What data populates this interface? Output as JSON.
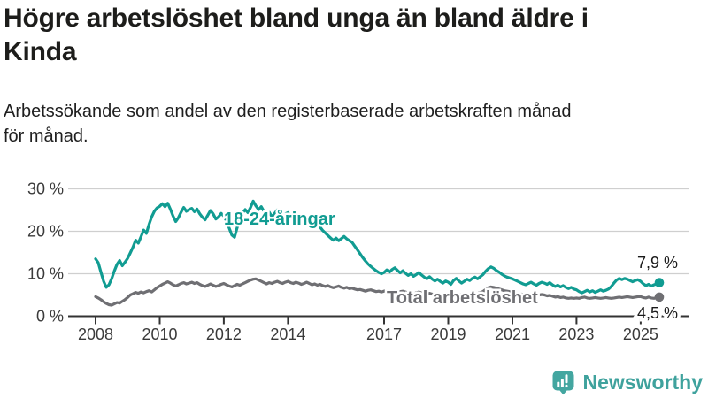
{
  "chart_data": {
    "type": "line",
    "title": "Högre arbetslöshet bland unga än bland äldre i Kinda",
    "title_lines": [
      "Högre arbetslöshet bland unga än bland äldre i",
      "Kinda"
    ],
    "subtitle": "Arbetssökande som andel av den registerbaserade arbetskraften månad för månad.",
    "subtitle_lines": [
      "Arbetssökande som andel av den registerbaserade arbetskraften månad",
      "för månad."
    ],
    "x_range": {
      "start": "2008-01",
      "end": "2025-08",
      "frequency": "monthly"
    },
    "x_tick_labels": [
      "2008",
      "2010",
      "2012",
      "2014",
      "2017",
      "2019",
      "2021",
      "2023",
      "2025"
    ],
    "y_ticks": [
      0,
      10,
      20,
      30
    ],
    "y_tick_labels": [
      "0 %",
      "10 %",
      "20 %",
      "30 %"
    ],
    "ylim": [
      0,
      30
    ],
    "grid": "horizontal",
    "legend": "inline-labels",
    "series": [
      {
        "id": "youth",
        "name": "18-24-åringar",
        "color": "#119C92",
        "end_value": 7.9,
        "end_label": "7,9 %",
        "values": [
          13.5,
          12.6,
          10.4,
          8.2,
          6.8,
          7.4,
          8.8,
          10.6,
          12.2,
          13.1,
          11.9,
          12.7,
          13.6,
          14.9,
          16.3,
          17.9,
          17.2,
          18.7,
          20.3,
          19.5,
          21.6,
          23.4,
          24.7,
          25.5,
          25.9,
          26.5,
          25.8,
          26.6,
          25.2,
          23.6,
          22.3,
          23.2,
          24.5,
          25.6,
          24.7,
          25.1,
          25.4,
          24.6,
          25.2,
          24.1,
          23.3,
          22.7,
          23.8,
          24.9,
          24.1,
          22.9,
          23.4,
          24.2,
          23.6,
          22.4,
          20.8,
          19.1,
          18.6,
          20.9,
          22.8,
          24.3,
          25.1,
          24.4,
          25.6,
          27.1,
          26.0,
          25.1,
          25.8,
          24.7,
          23.8,
          24.5,
          23.4,
          24.2,
          25.0,
          24.3,
          23.5,
          24.1,
          24.4,
          23.6,
          24.2,
          23.4,
          22.8,
          23.3,
          22.5,
          23.0,
          23.6,
          22.8,
          22.1,
          21.6,
          21.0,
          20.2,
          19.6,
          19.0,
          18.4,
          17.9,
          18.4,
          17.8,
          18.3,
          18.8,
          18.2,
          17.8,
          17.4,
          16.5,
          15.6,
          14.7,
          13.8,
          13.0,
          12.3,
          11.7,
          11.2,
          10.7,
          10.3,
          10.0,
          10.3,
          10.9,
          10.4,
          11.0,
          11.4,
          10.8,
          10.2,
          10.7,
          10.1,
          9.6,
          10.0,
          9.4,
          9.8,
          10.3,
          9.7,
          9.2,
          8.8,
          9.3,
          8.7,
          8.3,
          8.7,
          8.2,
          7.8,
          8.3,
          8.0,
          7.5,
          8.4,
          8.9,
          8.3,
          7.8,
          8.2,
          8.7,
          8.4,
          8.9,
          9.2,
          8.8,
          9.3,
          9.8,
          10.6,
          11.2,
          11.6,
          11.3,
          10.8,
          10.4,
          9.9,
          9.5,
          9.2,
          9.0,
          8.8,
          8.5,
          8.2,
          7.9,
          7.6,
          7.4,
          7.7,
          8.0,
          7.6,
          7.3,
          7.7,
          8.0,
          7.8,
          7.5,
          7.9,
          7.4,
          7.0,
          7.3,
          6.9,
          7.2,
          6.8,
          6.5,
          6.8,
          6.4,
          6.2,
          5.8,
          5.5,
          5.8,
          6.1,
          5.7,
          6.0,
          5.6,
          5.9,
          6.2,
          5.9,
          6.1,
          6.4,
          7.0,
          7.8,
          8.5,
          8.9,
          8.6,
          8.9,
          8.7,
          8.4,
          8.1,
          8.4,
          8.6,
          8.2,
          7.6,
          7.2,
          7.5,
          7.1,
          7.4,
          7.6,
          7.9
        ]
      },
      {
        "id": "total",
        "name": "Total arbetslöshet",
        "color": "#6F6F73",
        "end_value": 4.5,
        "end_label": "4,5 %",
        "values": [
          4.6,
          4.3,
          3.9,
          3.4,
          3.0,
          2.7,
          2.6,
          2.9,
          3.2,
          3.1,
          3.5,
          3.9,
          4.4,
          5.0,
          5.3,
          5.6,
          5.4,
          5.7,
          5.5,
          5.8,
          6.0,
          5.7,
          6.2,
          6.7,
          7.1,
          7.5,
          7.8,
          8.1,
          7.8,
          7.4,
          7.1,
          7.4,
          7.7,
          7.9,
          7.6,
          7.8,
          8.0,
          7.7,
          7.9,
          7.5,
          7.2,
          7.0,
          7.3,
          7.6,
          7.3,
          7.0,
          7.2,
          7.5,
          7.7,
          7.4,
          7.1,
          6.9,
          7.2,
          7.5,
          7.3,
          7.6,
          7.9,
          8.2,
          8.5,
          8.7,
          8.8,
          8.5,
          8.2,
          7.9,
          7.6,
          7.9,
          7.7,
          8.0,
          8.2,
          7.9,
          7.7,
          8.0,
          8.2,
          7.9,
          7.7,
          8.0,
          7.8,
          7.5,
          7.7,
          8.0,
          7.7,
          7.4,
          7.6,
          7.3,
          7.5,
          7.2,
          7.0,
          7.2,
          6.9,
          6.7,
          6.9,
          7.1,
          6.8,
          6.6,
          6.8,
          6.5,
          6.6,
          6.4,
          6.2,
          6.3,
          6.1,
          5.9,
          6.1,
          6.2,
          6.0,
          5.8,
          5.9,
          5.7,
          5.9,
          6.1,
          5.9,
          6.0,
          5.8,
          5.6,
          5.8,
          5.9,
          5.7,
          5.5,
          5.6,
          5.4,
          5.5,
          5.7,
          5.5,
          5.3,
          5.2,
          5.4,
          5.2,
          5.1,
          5.3,
          5.1,
          5.0,
          5.2,
          5.1,
          5.0,
          5.2,
          5.3,
          5.1,
          5.0,
          5.2,
          5.3,
          5.2,
          5.4,
          5.5,
          5.4,
          5.6,
          5.8,
          6.3,
          6.7,
          6.9,
          6.8,
          6.6,
          6.4,
          6.2,
          6.0,
          5.9,
          5.8,
          5.7,
          5.6,
          5.4,
          5.3,
          5.1,
          5.0,
          5.1,
          5.2,
          5.0,
          4.9,
          5.0,
          5.1,
          5.0,
          4.8,
          4.9,
          4.7,
          4.5,
          4.6,
          4.4,
          4.5,
          4.3,
          4.2,
          4.3,
          4.2,
          4.3,
          4.2,
          4.4,
          4.5,
          4.3,
          4.2,
          4.3,
          4.4,
          4.3,
          4.2,
          4.3,
          4.4,
          4.3,
          4.2,
          4.3,
          4.4,
          4.5,
          4.4,
          4.5,
          4.6,
          4.5,
          4.4,
          4.5,
          4.6,
          4.6,
          4.4,
          4.3,
          4.5,
          4.3,
          4.2,
          4.4,
          4.5
        ]
      }
    ]
  },
  "branding": {
    "name": "Newsworthy",
    "color": "#3FA29D",
    "icon_color": "#43A6A0",
    "icon": "newsworthy-speech-bubble-bar-chart-icon"
  }
}
